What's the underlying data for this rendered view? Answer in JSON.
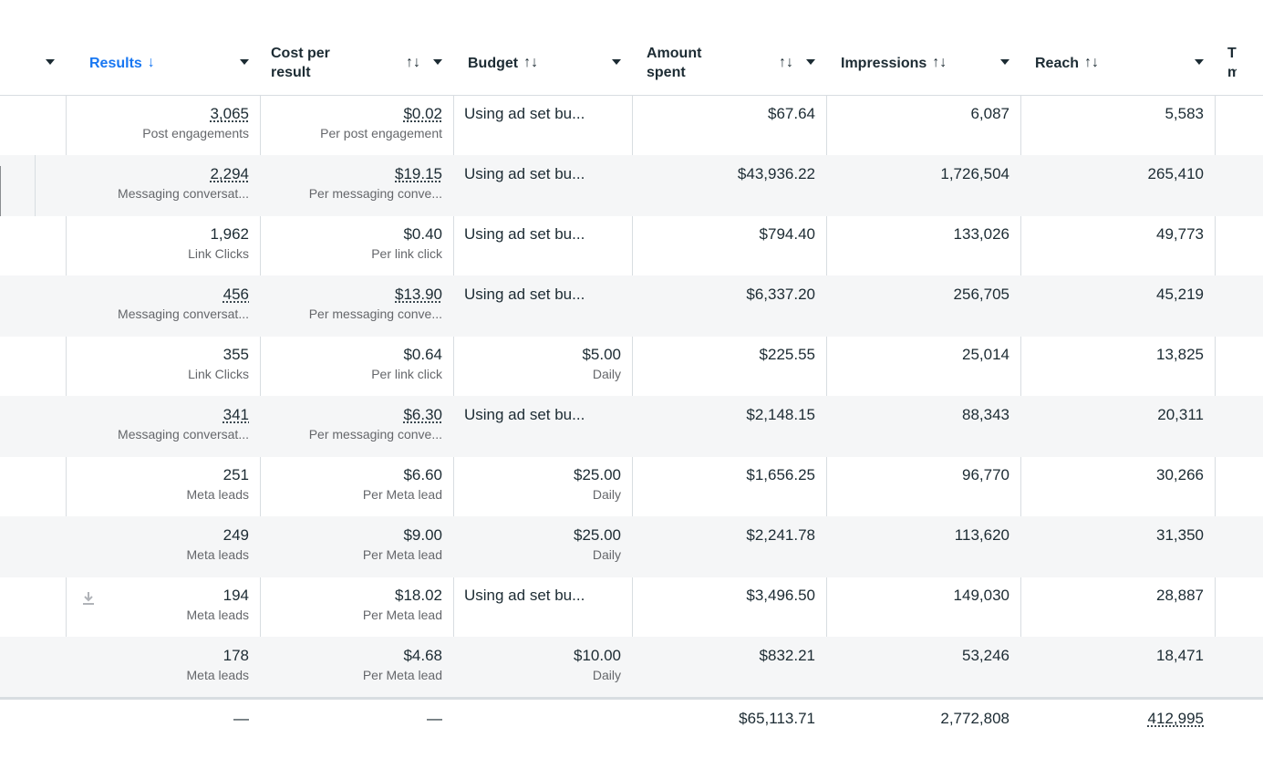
{
  "header": {
    "results": "Results",
    "results_sort": "↓",
    "cost_per_result": "Cost per result",
    "budget": "Budget",
    "amount_spent": "Amount spent",
    "impressions": "Impressions",
    "reach": "Reach",
    "cut_off": "T m",
    "sort_icon": "↑↓"
  },
  "rows": [
    {
      "results": "3,065",
      "results_type": "Post engagements",
      "cost": "$0.02",
      "cost_type": "Per post engagement",
      "budget": "Using ad set bu...",
      "budget_type": "",
      "amount": "$67.64",
      "impressions": "6,087",
      "reach": "5,583",
      "link": true
    },
    {
      "results": "2,294",
      "results_type": "Messaging conversat...",
      "cost": "$19.15",
      "cost_type": "Per messaging conve...",
      "budget": "Using ad set bu...",
      "budget_type": "",
      "amount": "$43,936.22",
      "impressions": "1,726,504",
      "reach": "265,410",
      "link": true
    },
    {
      "results": "1,962",
      "results_type": "Link Clicks",
      "cost": "$0.40",
      "cost_type": "Per link click",
      "budget": "Using ad set bu...",
      "budget_type": "",
      "amount": "$794.40",
      "impressions": "133,026",
      "reach": "49,773",
      "link": false
    },
    {
      "results": "456",
      "results_type": "Messaging conversat...",
      "cost": "$13.90",
      "cost_type": "Per messaging conve...",
      "budget": "Using ad set bu...",
      "budget_type": "",
      "amount": "$6,337.20",
      "impressions": "256,705",
      "reach": "45,219",
      "link": true
    },
    {
      "results": "355",
      "results_type": "Link Clicks",
      "cost": "$0.64",
      "cost_type": "Per link click",
      "budget": "$5.00",
      "budget_type": "Daily",
      "amount": "$225.55",
      "impressions": "25,014",
      "reach": "13,825",
      "link": false
    },
    {
      "results": "341",
      "results_type": "Messaging conversat...",
      "cost": "$6.30",
      "cost_type": "Per messaging conve...",
      "budget": "Using ad set bu...",
      "budget_type": "",
      "amount": "$2,148.15",
      "impressions": "88,343",
      "reach": "20,311",
      "link": true
    },
    {
      "results": "251",
      "results_type": "Meta leads",
      "cost": "$6.60",
      "cost_type": "Per Meta lead",
      "budget": "$25.00",
      "budget_type": "Daily",
      "amount": "$1,656.25",
      "impressions": "96,770",
      "reach": "30,266",
      "link": false
    },
    {
      "results": "249",
      "results_type": "Meta leads",
      "cost": "$9.00",
      "cost_type": "Per Meta lead",
      "budget": "$25.00",
      "budget_type": "Daily",
      "amount": "$2,241.78",
      "impressions": "113,620",
      "reach": "31,350",
      "link": false
    },
    {
      "results": "194",
      "results_type": "Meta leads",
      "cost": "$18.02",
      "cost_type": "Per Meta lead",
      "budget": "Using ad set bu...",
      "budget_type": "",
      "amount": "$3,496.50",
      "impressions": "149,030",
      "reach": "28,887",
      "link": false
    },
    {
      "results": "178",
      "results_type": "Meta leads",
      "cost": "$4.68",
      "cost_type": "Per Meta lead",
      "budget": "$10.00",
      "budget_type": "Daily",
      "amount": "$832.21",
      "impressions": "53,246",
      "reach": "18,471",
      "link": false
    }
  ],
  "totals": {
    "results": "—",
    "cost": "—",
    "budget": "",
    "amount": "$65,113.71",
    "impressions": "2,772,808",
    "reach": "412,995"
  },
  "colors": {
    "accent": "#1877f2",
    "text": "#1c2b33",
    "muted": "#65676b",
    "row_alt": "#f5f6f7",
    "border": "#d8dde1"
  },
  "icons": {
    "column_menu": "caret-down-icon",
    "download": "download-icon"
  }
}
